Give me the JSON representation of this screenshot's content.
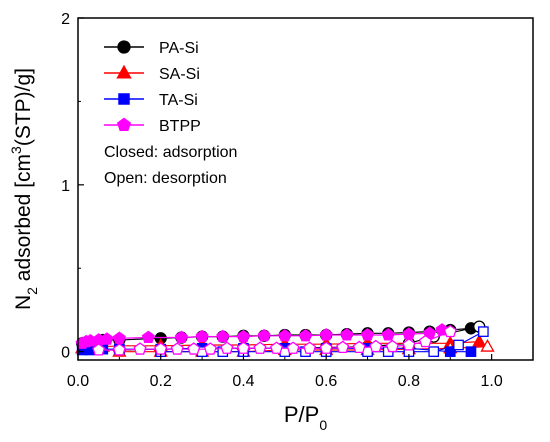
{
  "chart_data": {
    "type": "scatter",
    "xlabel": {
      "main": "P/P",
      "sub": "0"
    },
    "ylabel": {
      "pre": "N",
      "sub": "2",
      "mid": " adsorbed [cm",
      "sup": "3",
      "post": "(STP)/g]"
    },
    "xlim": [
      0,
      1.1
    ],
    "ylim": [
      -0.05,
      2
    ],
    "x_ticks": [
      {
        "value": 0.0,
        "label": "0.0"
      },
      {
        "value": 0.2,
        "label": "0.2"
      },
      {
        "value": 0.4,
        "label": "0.4"
      },
      {
        "value": 0.6,
        "label": "0.6"
      },
      {
        "value": 0.8,
        "label": "0.8"
      },
      {
        "value": 1.0,
        "label": "1.0"
      }
    ],
    "y_ticks": [
      {
        "value": 0,
        "label": "0"
      },
      {
        "value": 1,
        "label": "1"
      },
      {
        "value": 2,
        "label": "2"
      }
    ],
    "legend_position": "top-left",
    "notes": [
      "Closed: adsorption",
      "Open: desorption"
    ],
    "series": [
      {
        "name": "PA-Si",
        "color": "#000000",
        "marker": "circle",
        "adsorption": {
          "x": [
            0.01,
            0.03,
            0.06,
            0.1,
            0.2,
            0.25,
            0.3,
            0.35,
            0.4,
            0.45,
            0.5,
            0.55,
            0.6,
            0.65,
            0.7,
            0.75,
            0.8,
            0.85,
            0.9,
            0.95
          ],
          "y": [
            0.05,
            0.06,
            0.07,
            0.07,
            0.08,
            0.085,
            0.09,
            0.09,
            0.095,
            0.095,
            0.1,
            0.1,
            0.1,
            0.105,
            0.11,
            0.11,
            0.115,
            0.12,
            0.13,
            0.14
          ]
        },
        "desorption": {
          "x": [
            0.97,
            0.86,
            0.8,
            0.7,
            0.6,
            0.5,
            0.4,
            0.3,
            0.2,
            0.1
          ],
          "y": [
            0.15,
            0.09,
            0.05,
            0.03,
            0.025,
            0.02,
            0.02,
            0.02,
            0.015,
            0.01
          ]
        }
      },
      {
        "name": "SA-Si",
        "color": "#ff0000",
        "marker": "triangle",
        "adsorption": {
          "x": [
            0.01,
            0.03,
            0.06,
            0.1,
            0.2,
            0.3,
            0.4,
            0.5,
            0.6,
            0.7,
            0.8,
            0.9,
            0.97
          ],
          "y": [
            0.02,
            0.03,
            0.03,
            0.035,
            0.035,
            0.04,
            0.04,
            0.045,
            0.045,
            0.05,
            0.05,
            0.05,
            0.06
          ]
        },
        "desorption": {
          "x": [
            0.99,
            0.9,
            0.8,
            0.7,
            0.6,
            0.5,
            0.4,
            0.3,
            0.2,
            0.1
          ],
          "y": [
            0.03,
            0.02,
            0.015,
            0.01,
            0.01,
            0.01,
            0.0,
            0.0,
            0.0,
            0.0
          ]
        }
      },
      {
        "name": "TA-Si",
        "color": "#0000ff",
        "marker": "square",
        "adsorption": {
          "x": [
            0.01,
            0.03,
            0.06,
            0.1,
            0.2,
            0.3,
            0.4,
            0.5,
            0.6,
            0.7,
            0.8,
            0.9,
            0.95
          ],
          "y": [
            0.01,
            0.01,
            0.015,
            0.015,
            0.015,
            0.02,
            0.02,
            0.02,
            0.02,
            0.02,
            0.02,
            0.0,
            0.0
          ]
        },
        "desorption": {
          "x": [
            0.98,
            0.92,
            0.86,
            0.8,
            0.75,
            0.7,
            0.6,
            0.55,
            0.5,
            0.4,
            0.35,
            0.3,
            0.2
          ],
          "y": [
            0.12,
            0.04,
            0.0,
            0.0,
            0.0,
            0.0,
            0.0,
            0.0,
            0.0,
            0.0,
            0.0,
            0.0,
            0.0
          ]
        }
      },
      {
        "name": "BTPP",
        "color": "#ff00ff",
        "marker": "pentagon",
        "adsorption": {
          "x": [
            0.01,
            0.02,
            0.03,
            0.05,
            0.07,
            0.1,
            0.17,
            0.25,
            0.3,
            0.35,
            0.4,
            0.45,
            0.5,
            0.55,
            0.6,
            0.65,
            0.7,
            0.75,
            0.8,
            0.85,
            0.88
          ],
          "y": [
            0.05,
            0.06,
            0.065,
            0.07,
            0.075,
            0.08,
            0.085,
            0.085,
            0.09,
            0.09,
            0.09,
            0.095,
            0.095,
            0.095,
            0.1,
            0.1,
            0.1,
            0.1,
            0.105,
            0.11,
            0.13
          ]
        },
        "desorption": {
          "x": [
            0.9,
            0.84,
            0.8,
            0.76,
            0.72,
            0.68,
            0.64,
            0.6,
            0.56,
            0.52,
            0.48,
            0.44,
            0.4,
            0.36,
            0.32,
            0.28,
            0.24,
            0.2,
            0.15,
            0.1,
            0.05
          ],
          "y": [
            0.12,
            0.06,
            0.04,
            0.03,
            0.03,
            0.025,
            0.025,
            0.02,
            0.02,
            0.02,
            0.02,
            0.02,
            0.02,
            0.02,
            0.015,
            0.015,
            0.015,
            0.015,
            0.015,
            0.01,
            0.01
          ]
        }
      }
    ]
  }
}
